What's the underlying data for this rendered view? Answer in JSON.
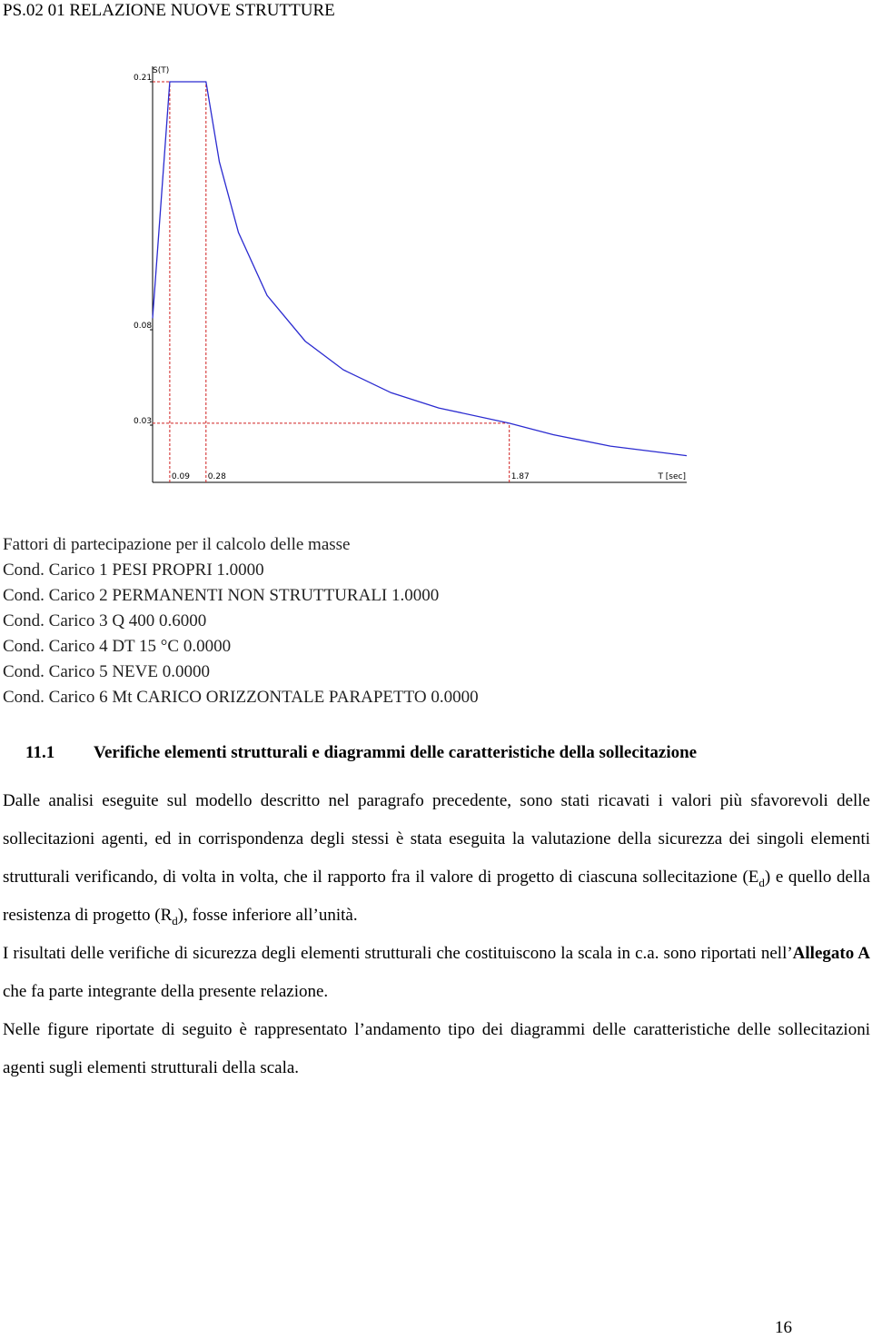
{
  "header": {
    "title": "PS.02 01 RELAZIONE NUOVE STRUTTURE"
  },
  "chart_data": {
    "type": "line",
    "y_label": "S(T)",
    "x_label": "T [sec]",
    "x": [
      0,
      0.09,
      0.28,
      0.35,
      0.45,
      0.6,
      0.8,
      1.0,
      1.25,
      1.5,
      1.87,
      2.1,
      2.4,
      2.8
    ],
    "values": [
      0.086,
      0.21,
      0.21,
      0.168,
      0.131,
      0.098,
      0.074,
      0.059,
      0.047,
      0.039,
      0.031,
      0.025,
      0.019,
      0.014
    ],
    "color": "#2b2bd0",
    "guide_color": "#d02020",
    "xlim": [
      0,
      2.8
    ],
    "ylim": [
      0,
      0.22
    ],
    "xticks": [
      0.09,
      0.28,
      1.87
    ],
    "yticks": [
      0.21,
      0.08,
      0.03
    ]
  },
  "factors": {
    "title": "Fattori di partecipazione per il calcolo delle masse",
    "lines": [
      "Cond. Carico 1 PESI PROPRI 1.0000",
      "Cond. Carico 2 PERMANENTI NON STRUTTURALI 1.0000",
      "Cond. Carico 3 Q 400 0.6000",
      "Cond. Carico 4 DT 15 °C 0.0000",
      "Cond. Carico 5 NEVE 0.0000",
      "Cond. Carico 6 Mt CARICO ORIZZONTALE PARAPETTO 0.0000"
    ]
  },
  "section": {
    "number": "11.1",
    "title": "Verifiche elementi strutturali e diagrammi delle caratteristiche della sollecitazione"
  },
  "paragraphs": [
    [
      "Dalle analisi eseguite sul modello descritto nel paragrafo precedente, sono stati ricavati i valori più sfavorevoli delle sollecitazioni agenti, ed in corrispondenza degli stessi è stata eseguita la valutazione della sicurezza dei singoli elementi strutturali verificando, di volta in volta, che il rapporto fra il valore di progetto di ciascuna sollecitazione (E",
      "d",
      ") e quello della resistenza di progetto (R",
      "d",
      "), fosse inferiore all’unità."
    ],
    [
      "I risultati delle verifiche di sicurezza degli elementi strutturali che costituiscono la scala in c.a. sono riportati nell’",
      "Allegato A",
      " che fa parte integrante della presente relazione."
    ],
    [
      "Nelle figure riportate di seguito è rappresentato l’andamento tipo dei diagrammi delle caratteristiche delle sollecitazioni agenti sugli elementi strutturali della scala."
    ]
  ],
  "page_number": "16"
}
